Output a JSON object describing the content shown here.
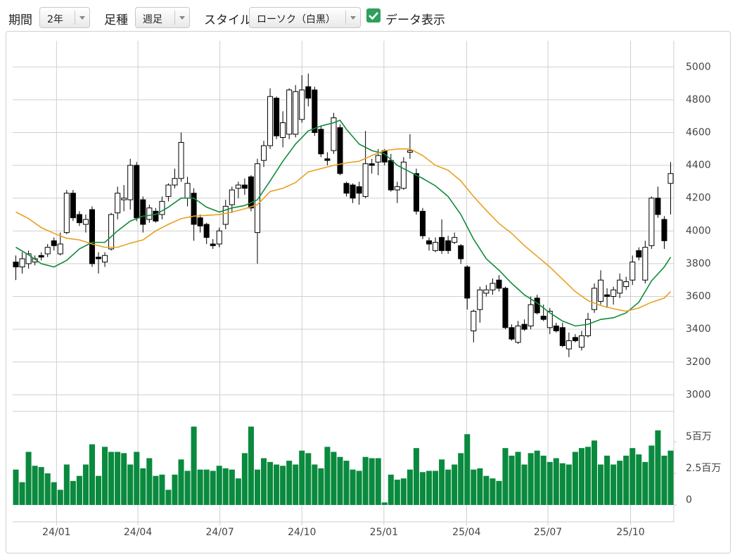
{
  "toolbar": {
    "period_label": "期間",
    "period": "2年",
    "interval_label": "足種",
    "interval": "週足",
    "style_label": "スタイル",
    "style": "ローソク（白黒）",
    "show_data_label": "データ表示",
    "show_data": true
  },
  "chart_data": [
    {
      "type": "candlestick",
      "up_color": "#ffffff",
      "down_color": "#000000",
      "grid": true,
      "xlim": [
        -0.5,
        103.5
      ],
      "xticks": [
        {
          "value": 6.4,
          "label": "24/01"
        },
        {
          "value": 19.2,
          "label": "24/04"
        },
        {
          "value": 32.1,
          "label": "24/07"
        },
        {
          "value": 45.0,
          "label": "24/10"
        },
        {
          "value": 57.9,
          "label": "25/01"
        },
        {
          "value": 70.9,
          "label": "25/04"
        },
        {
          "value": 83.7,
          "label": "25/07"
        },
        {
          "value": 96.7,
          "label": "25/10"
        }
      ],
      "ylim": [
        2920,
        5160
      ],
      "yticks": [
        3000,
        3200,
        3400,
        3600,
        3800,
        4000,
        4200,
        4400,
        4600,
        4800,
        5000
      ],
      "open": [
        3810,
        3780,
        3800,
        3810,
        3850,
        3860,
        3940,
        3860,
        3990,
        4230,
        4100,
        4040,
        4130,
        3840,
        3810,
        3890,
        4110,
        4190,
        4190,
        4400,
        4190,
        4070,
        4120,
        4100,
        4210,
        4280,
        4320,
        4200,
        4230,
        4080,
        4040,
        3920,
        3920,
        4040,
        4160,
        4260,
        4280,
        4330,
        3990,
        4430,
        4520,
        4810,
        4570,
        4590,
        4590,
        4680,
        4880,
        4860,
        4620,
        4440,
        4490,
        4630,
        4290,
        4280,
        4270,
        4210,
        4410,
        4420,
        4490,
        4430,
        4250,
        4260,
        4480,
        4350,
        4120,
        3940,
        3880,
        3960,
        3940,
        3930,
        3910,
        3780,
        3390,
        3520,
        3620,
        3640,
        3700,
        3650,
        3410,
        3320,
        3430,
        3420,
        3590,
        3480,
        3410,
        3420,
        3410,
        3280,
        3350,
        3290,
        3360,
        3520,
        3570,
        3610,
        3600,
        3620,
        3660,
        3700,
        3880,
        3700,
        3910,
        4200,
        4070,
        4290
      ],
      "high": [
        3850,
        3870,
        3880,
        3850,
        3870,
        3920,
        3960,
        3990,
        4250,
        4250,
        4120,
        4100,
        4150,
        3870,
        3870,
        4110,
        4270,
        4280,
        4440,
        4420,
        4210,
        4160,
        4140,
        4210,
        4290,
        4380,
        4600,
        4330,
        4260,
        4100,
        4050,
        3950,
        4020,
        4190,
        4270,
        4300,
        4320,
        4340,
        4440,
        4550,
        4870,
        4820,
        4730,
        4870,
        4890,
        4950,
        4960,
        4880,
        4640,
        4480,
        4720,
        4650,
        4300,
        4290,
        4300,
        4610,
        4440,
        4500,
        4500,
        4470,
        4300,
        4450,
        4590,
        4380,
        4140,
        3960,
        3960,
        4070,
        3970,
        3990,
        3920,
        3790,
        3520,
        3660,
        3670,
        3710,
        3730,
        3660,
        3430,
        3450,
        3460,
        3600,
        3610,
        3550,
        3530,
        3440,
        3440,
        3380,
        3370,
        3390,
        3500,
        3680,
        3760,
        3650,
        3660,
        3740,
        3720,
        3850,
        3900,
        3940,
        4210,
        4270,
        4090,
        4420
      ],
      "low": [
        3700,
        3740,
        3770,
        3790,
        3820,
        3840,
        3880,
        3850,
        3980,
        4060,
        4030,
        3990,
        3780,
        3740,
        3780,
        3880,
        4070,
        4120,
        4130,
        4060,
        3990,
        4050,
        4050,
        4070,
        4180,
        4260,
        4300,
        4150,
        3940,
        3990,
        3920,
        3890,
        3900,
        4010,
        4110,
        4200,
        4220,
        4120,
        3800,
        4390,
        4500,
        4560,
        4510,
        4560,
        4570,
        4660,
        4760,
        4580,
        4450,
        4400,
        4470,
        4340,
        4210,
        4170,
        4160,
        4200,
        4350,
        4340,
        4400,
        4240,
        4170,
        4250,
        4440,
        4100,
        3950,
        3880,
        3870,
        3860,
        3860,
        3920,
        3800,
        3520,
        3320,
        3440,
        3600,
        3610,
        3630,
        3400,
        3330,
        3310,
        3390,
        3400,
        3490,
        3450,
        3370,
        3380,
        3290,
        3230,
        3320,
        3270,
        3350,
        3500,
        3550,
        3530,
        3550,
        3590,
        3640,
        3670,
        3820,
        3680,
        3890,
        4080,
        3890,
        4100
      ],
      "close": [
        3780,
        3830,
        3860,
        3830,
        3840,
        3900,
        3910,
        3920,
        4230,
        4080,
        4050,
        4070,
        3800,
        3830,
        3850,
        4100,
        4230,
        4200,
        4400,
        4080,
        4040,
        4140,
        4060,
        4180,
        4280,
        4320,
        4540,
        4290,
        4040,
        4030,
        3960,
        3910,
        4000,
        4150,
        4250,
        4280,
        4260,
        4140,
        4410,
        4520,
        4820,
        4580,
        4660,
        4860,
        4850,
        4860,
        4810,
        4600,
        4470,
        4430,
        4690,
        4350,
        4230,
        4200,
        4230,
        4410,
        4400,
        4460,
        4420,
        4250,
        4270,
        4420,
        4490,
        4120,
        3970,
        3920,
        3930,
        3880,
        3880,
        3960,
        3830,
        3590,
        3510,
        3640,
        3640,
        3680,
        3650,
        3410,
        3340,
        3420,
        3400,
        3550,
        3500,
        3460,
        3510,
        3390,
        3300,
        3330,
        3330,
        3360,
        3460,
        3650,
        3700,
        3600,
        3640,
        3700,
        3690,
        3810,
        3840,
        3900,
        4200,
        4100,
        3940,
        4350
      ],
      "lines": [
        {
          "color": "#128a3c",
          "x": [
            0,
            2,
            4,
            6,
            8,
            10,
            12,
            14,
            16,
            18,
            20,
            22,
            24,
            26,
            28,
            30,
            32,
            34,
            36,
            38,
            40,
            42,
            44,
            46,
            48,
            50,
            51,
            52,
            54,
            56,
            58,
            60,
            62,
            64,
            66,
            68,
            70,
            72,
            74,
            76,
            78,
            80,
            82,
            84,
            86,
            88,
            90,
            92,
            94,
            96,
            98,
            100,
            102,
            103
          ],
          "values": [
            3900,
            3854,
            3800,
            3780,
            3820,
            3890,
            3930,
            3930,
            4000,
            4060,
            4090,
            4100,
            4145,
            4200,
            4200,
            4145,
            4115,
            4140,
            4155,
            4190,
            4305,
            4425,
            4530,
            4610,
            4640,
            4660,
            4675,
            4620,
            4530,
            4490,
            4470,
            4400,
            4360,
            4320,
            4275,
            4210,
            4100,
            3950,
            3830,
            3760,
            3680,
            3610,
            3560,
            3500,
            3450,
            3420,
            3430,
            3460,
            3470,
            3500,
            3565,
            3695,
            3780,
            3840
          ]
        },
        {
          "color": "#e8a020",
          "x": [
            0,
            2,
            4,
            6,
            8,
            10,
            12,
            14,
            16,
            18,
            20,
            22,
            24,
            26,
            28,
            30,
            32,
            34,
            36,
            38,
            40,
            42,
            44,
            46,
            48,
            50,
            52,
            54,
            56,
            58,
            60,
            62,
            64,
            66,
            68,
            70,
            72,
            74,
            76,
            78,
            80,
            82,
            84,
            86,
            88,
            90,
            92,
            94,
            96,
            98,
            100,
            102,
            103
          ],
          "values": [
            4115,
            4075,
            4020,
            3985,
            3955,
            3945,
            3920,
            3900,
            3900,
            3925,
            3945,
            4000,
            4040,
            4075,
            4090,
            4095,
            4100,
            4115,
            4135,
            4160,
            4240,
            4260,
            4295,
            4360,
            4380,
            4400,
            4415,
            4425,
            4460,
            4490,
            4500,
            4500,
            4460,
            4400,
            4370,
            4305,
            4210,
            4125,
            4045,
            3985,
            3910,
            3845,
            3780,
            3705,
            3630,
            3575,
            3545,
            3525,
            3510,
            3530,
            3565,
            3590,
            3630
          ]
        }
      ]
    },
    {
      "type": "bar",
      "color": "#0a8a3e",
      "ylim": [
        0,
        7.4
      ],
      "yticks": [
        0,
        {
          "value": 2.5,
          "label": "2.5百万"
        },
        {
          "value": 5,
          "label": "5百万"
        }
      ],
      "values": [
        2.8,
        1.8,
        4.2,
        3.1,
        3.0,
        2.5,
        1.8,
        1.2,
        3.2,
        1.9,
        2.3,
        3.2,
        4.8,
        2.3,
        4.6,
        4.2,
        4.2,
        4.1,
        3.2,
        4.2,
        2.9,
        3.7,
        2.3,
        2.4,
        1.2,
        2.4,
        3.6,
        2.7,
        6.2,
        2.8,
        2.8,
        2.7,
        3.1,
        2.9,
        2.8,
        2.1,
        4.1,
        6.2,
        2.8,
        3.7,
        3.4,
        3.2,
        3.1,
        3.5,
        3.2,
        4.3,
        4.1,
        3.2,
        2.9,
        4.6,
        4.2,
        3.8,
        3.5,
        2.8,
        2.7,
        3.8,
        3.7,
        3.7,
        0.2,
        2.4,
        2.0,
        2.1,
        2.8,
        4.5,
        2.6,
        2.7,
        2.7,
        3.6,
        2.8,
        3.2,
        4.1,
        5.6,
        2.8,
        2.9,
        2.3,
        2.1,
        1.9,
        4.5,
        3.9,
        4.2,
        3.2,
        4.1,
        4.3,
        3.9,
        3.4,
        3.7,
        3.3,
        3.2,
        4.2,
        4.5,
        4.6,
        5.1,
        3.2,
        3.9,
        3.2,
        3.5,
        3.9,
        4.5,
        4.0,
        3.4,
        4.7,
        5.9,
        3.9,
        4.3
      ]
    }
  ]
}
